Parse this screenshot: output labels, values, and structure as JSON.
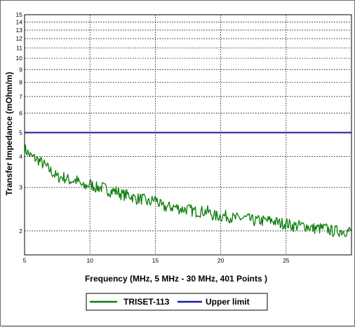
{
  "chart_data": {
    "type": "line",
    "title": "",
    "xlabel": "Frequency (MHz, 5 MHz - 30 MHz, 401 Points )",
    "ylabel": "Transfer Impedance (mOhm/m)",
    "xlim": [
      5,
      30
    ],
    "ylim": [
      1.6,
      15
    ],
    "yscale": "log",
    "grid": true,
    "legend_position": "bottom",
    "x_ticks": [
      "5",
      "10",
      "15",
      "20",
      "25"
    ],
    "y_ticks": [
      "2",
      "3",
      "4",
      "5",
      "6",
      "7",
      "8",
      "9",
      "10",
      "11",
      "12",
      "13",
      "14",
      "15"
    ],
    "series": [
      {
        "name": "TRISET-113",
        "color": "#0a7d0a",
        "x": [
          5,
          5.5,
          6,
          6.5,
          7,
          7.5,
          8,
          8.5,
          9,
          9.5,
          10,
          10.5,
          11,
          11.5,
          12,
          12.5,
          13,
          13.5,
          14,
          14.5,
          15,
          15.5,
          16,
          16.5,
          17,
          17.5,
          18,
          18.5,
          19,
          19.5,
          20,
          20.5,
          21,
          21.5,
          22,
          22.5,
          23,
          23.5,
          24,
          24.5,
          25,
          25.5,
          26,
          26.5,
          27,
          27.5,
          28,
          28.5,
          29,
          29.5,
          30
        ],
        "y": [
          4.3,
          4.0,
          3.9,
          3.7,
          3.5,
          3.3,
          3.3,
          3.2,
          3.2,
          3.0,
          3.1,
          3.0,
          3.0,
          2.9,
          2.9,
          2.8,
          2.8,
          2.7,
          2.7,
          2.6,
          2.7,
          2.5,
          2.5,
          2.5,
          2.45,
          2.45,
          2.4,
          2.4,
          2.4,
          2.3,
          2.3,
          2.3,
          2.25,
          2.25,
          2.25,
          2.2,
          2.2,
          2.2,
          2.2,
          2.15,
          2.15,
          2.1,
          2.1,
          2.1,
          2.05,
          2.05,
          2.05,
          2.0,
          2.0,
          2.0,
          2.0
        ]
      },
      {
        "name": "Upper limit",
        "color": "#1a1aa8",
        "x": [
          5,
          30
        ],
        "y": [
          5,
          5
        ]
      }
    ]
  }
}
